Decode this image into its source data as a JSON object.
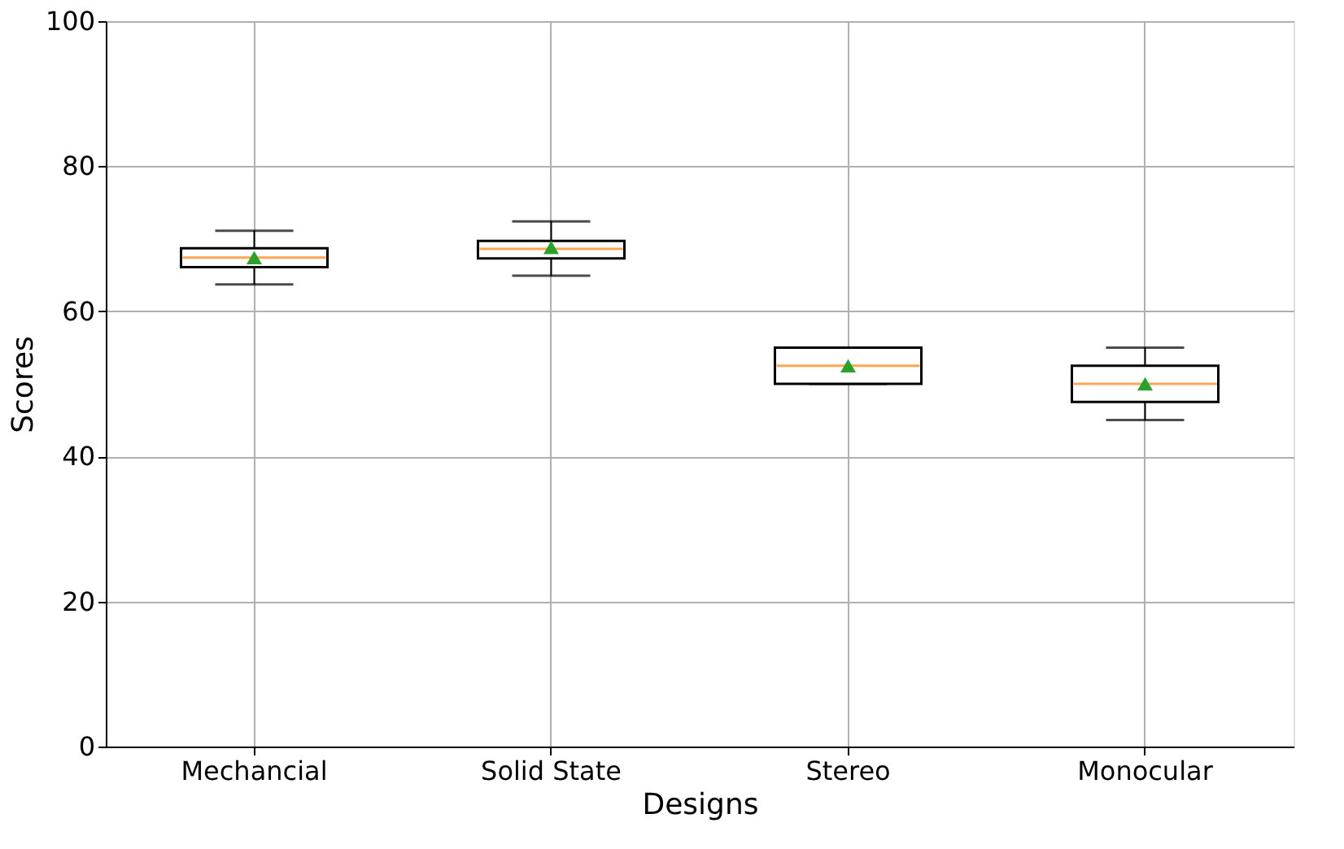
{
  "chart_data": {
    "type": "box",
    "xlabel": "Designs",
    "ylabel": "Scores",
    "categories": [
      "Mechancial",
      "Solid State",
      "Stereo",
      "Monocular"
    ],
    "boxes": [
      {
        "low": 63.7,
        "q1": 66.1,
        "median": 67.4,
        "q3": 68.7,
        "high": 71.1,
        "mean": 67.4
      },
      {
        "low": 64.9,
        "q1": 67.3,
        "median": 68.6,
        "q3": 69.7,
        "high": 72.4,
        "mean": 68.8
      },
      {
        "low": 50,
        "q1": 50,
        "median": 52.5,
        "q3": 55,
        "high": 55,
        "mean": 52.5
      },
      {
        "low": 45,
        "q1": 47.5,
        "median": 50,
        "q3": 52.5,
        "high": 55,
        "mean": 50
      }
    ],
    "color": "#000000",
    "marker": "triangle",
    "ylim": [
      0,
      100
    ],
    "yticks": [
      0,
      20,
      40,
      60,
      80,
      100
    ],
    "grid": true
  }
}
